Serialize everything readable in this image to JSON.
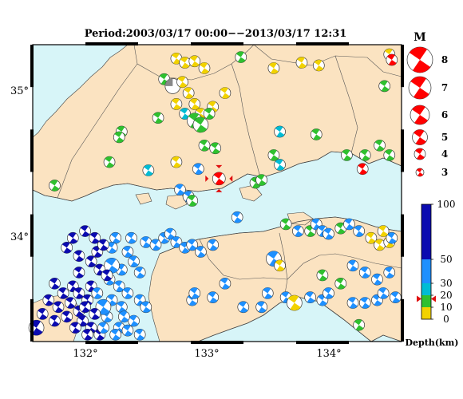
{
  "title": "Period:2003/03/17 00:00−−2013/03/17 12:31",
  "colors": {
    "land": "#fbe3c1",
    "sea": "#d7f5f8",
    "border": "#555555",
    "coast": "#444444",
    "deep": "#0b0bb0",
    "mid": "#1e90ff",
    "cyan": "#00bcd4",
    "green": "#2fc02f",
    "yellow": "#f2d200",
    "red": "#ff0000",
    "mainshock": "#e01010"
  },
  "axes": {
    "lon_ticks": [
      "132°",
      "133°",
      "134°"
    ],
    "lat_ticks": [
      "35°",
      "34°"
    ]
  },
  "magnitude_legend": {
    "title": "M",
    "items": [
      "8",
      "7",
      "6",
      "5",
      "4",
      "3"
    ]
  },
  "depth_legend": {
    "ticks": [
      "100",
      "50",
      "30",
      "20",
      "10",
      "0"
    ],
    "label": "Depth(km)",
    "current_depth_marker": 17
  },
  "mainshock": {
    "lon": 133.1,
    "lat": 34.38,
    "magnitude": 5,
    "color": "red"
  },
  "events": [
    [
      132.75,
      35.25,
      "yellow",
      4
    ],
    [
      132.82,
      35.22,
      "yellow",
      4
    ],
    [
      132.9,
      35.23,
      "yellow",
      4
    ],
    [
      132.98,
      35.18,
      "yellow",
      4
    ],
    [
      133.28,
      35.26,
      "green",
      4
    ],
    [
      133.55,
      35.18,
      "yellow",
      4
    ],
    [
      133.78,
      35.22,
      "yellow",
      4
    ],
    [
      133.92,
      35.2,
      "yellow",
      4
    ],
    [
      134.5,
      35.28,
      "yellow",
      4
    ],
    [
      134.52,
      35.24,
      "red",
      4
    ],
    [
      134.46,
      35.05,
      "green",
      4
    ],
    [
      132.65,
      35.1,
      "green",
      4
    ],
    [
      132.72,
      35.05,
      "white",
      5
    ],
    [
      132.8,
      35.08,
      "yellow",
      4
    ],
    [
      132.85,
      35.0,
      "yellow",
      4
    ],
    [
      132.75,
      34.92,
      "yellow",
      4
    ],
    [
      132.82,
      34.85,
      "cyan",
      4
    ],
    [
      132.9,
      34.92,
      "yellow",
      4
    ],
    [
      132.95,
      34.85,
      "yellow",
      4
    ],
    [
      133.05,
      34.9,
      "yellow",
      4
    ],
    [
      133.15,
      35.0,
      "yellow",
      4
    ],
    [
      132.9,
      34.8,
      "green",
      5
    ],
    [
      132.95,
      34.77,
      "green",
      5
    ],
    [
      133.02,
      34.85,
      "green",
      4
    ],
    [
      132.6,
      34.82,
      "green",
      4
    ],
    [
      132.3,
      34.72,
      "green",
      4
    ],
    [
      132.28,
      34.68,
      "green",
      4
    ],
    [
      132.98,
      34.62,
      "green",
      4
    ],
    [
      133.07,
      34.6,
      "green",
      4
    ],
    [
      132.75,
      34.5,
      "yellow",
      4
    ],
    [
      133.6,
      34.72,
      "cyan",
      4
    ],
    [
      133.9,
      34.7,
      "green",
      4
    ],
    [
      134.15,
      34.55,
      "green",
      4
    ],
    [
      133.55,
      34.55,
      "green",
      4
    ],
    [
      134.3,
      34.55,
      "green",
      4
    ],
    [
      134.42,
      34.62,
      "green",
      4
    ],
    [
      134.5,
      34.55,
      "green",
      4
    ],
    [
      134.28,
      34.45,
      "red",
      4
    ],
    [
      132.2,
      34.5,
      "green",
      4
    ],
    [
      132.52,
      34.44,
      "cyan",
      4
    ],
    [
      132.93,
      34.45,
      "mid",
      4
    ],
    [
      131.75,
      34.33,
      "green",
      4
    ],
    [
      132.78,
      34.3,
      "mid",
      4
    ],
    [
      132.85,
      34.25,
      "mid",
      4
    ],
    [
      132.88,
      34.22,
      "green",
      4
    ],
    [
      133.4,
      34.35,
      "green",
      4
    ],
    [
      133.45,
      34.37,
      "green",
      4
    ],
    [
      133.6,
      34.48,
      "cyan",
      4
    ],
    [
      133.25,
      34.1,
      "mid",
      4
    ],
    [
      133.65,
      34.05,
      "green",
      4
    ],
    [
      133.75,
      34.0,
      "mid",
      4
    ],
    [
      133.85,
      34.0,
      "green",
      4
    ],
    [
      133.9,
      34.05,
      "mid",
      4
    ],
    [
      133.95,
      34.0,
      "mid",
      4
    ],
    [
      134.0,
      33.98,
      "mid",
      4
    ],
    [
      134.1,
      34.02,
      "green",
      4
    ],
    [
      134.17,
      34.05,
      "mid",
      4
    ],
    [
      134.25,
      34.0,
      "mid",
      4
    ],
    [
      134.35,
      33.95,
      "yellow",
      4
    ],
    [
      134.42,
      33.9,
      "yellow",
      4
    ],
    [
      134.5,
      33.92,
      "yellow",
      4
    ],
    [
      134.52,
      33.95,
      "mid",
      4
    ],
    [
      134.45,
      34.0,
      "yellow",
      4
    ],
    [
      132.38,
      33.95,
      "mid",
      4
    ],
    [
      132.5,
      33.92,
      "mid",
      4
    ],
    [
      132.58,
      33.9,
      "mid",
      4
    ],
    [
      132.65,
      33.95,
      "mid",
      4
    ],
    [
      132.7,
      33.98,
      "mid",
      4
    ],
    [
      132.75,
      33.92,
      "mid",
      4
    ],
    [
      132.82,
      33.88,
      "mid",
      4
    ],
    [
      132.88,
      33.9,
      "mid",
      4
    ],
    [
      132.95,
      33.85,
      "mid",
      4
    ],
    [
      133.05,
      33.9,
      "mid",
      4
    ],
    [
      133.55,
      33.8,
      "mid",
      5
    ],
    [
      133.6,
      33.75,
      "yellow",
      4
    ],
    [
      134.2,
      33.75,
      "mid",
      4
    ],
    [
      134.3,
      33.7,
      "mid",
      4
    ],
    [
      134.4,
      33.65,
      "mid",
      4
    ],
    [
      134.5,
      33.7,
      "mid",
      4
    ],
    [
      133.95,
      33.68,
      "green",
      4
    ],
    [
      134.1,
      33.62,
      "green",
      4
    ],
    [
      133.15,
      33.62,
      "mid",
      4
    ],
    [
      133.5,
      33.55,
      "mid",
      4
    ],
    [
      133.65,
      33.52,
      "mid",
      4
    ],
    [
      133.05,
      33.52,
      "mid",
      4
    ],
    [
      132.88,
      33.5,
      "mid",
      4
    ],
    [
      132.9,
      33.55,
      "mid",
      4
    ],
    [
      133.3,
      33.45,
      "mid",
      4
    ],
    [
      133.45,
      33.45,
      "mid",
      4
    ],
    [
      133.72,
      33.48,
      "yellow",
      5
    ],
    [
      133.85,
      33.52,
      "mid",
      4
    ],
    [
      133.95,
      33.5,
      "mid",
      4
    ],
    [
      134.0,
      33.55,
      "mid",
      4
    ],
    [
      134.2,
      33.48,
      "mid",
      4
    ],
    [
      134.3,
      33.48,
      "mid",
      4
    ],
    [
      134.4,
      33.5,
      "mid",
      4
    ],
    [
      134.45,
      33.55,
      "mid",
      4
    ],
    [
      134.55,
      33.52,
      "mid",
      4
    ],
    [
      134.25,
      33.32,
      "green",
      4
    ],
    [
      132.25,
      33.95,
      "mid",
      4
    ],
    [
      132.22,
      33.88,
      "mid",
      4
    ],
    [
      132.35,
      33.85,
      "mid",
      4
    ],
    [
      132.4,
      33.78,
      "mid",
      4
    ],
    [
      132.3,
      33.72,
      "mid",
      4
    ],
    [
      132.2,
      33.65,
      "mid",
      4
    ],
    [
      132.28,
      33.6,
      "mid",
      4
    ],
    [
      132.35,
      33.55,
      "mid",
      4
    ],
    [
      132.22,
      33.5,
      "mid",
      4
    ],
    [
      132.3,
      33.45,
      "mid",
      4
    ],
    [
      132.18,
      33.38,
      "mid",
      4
    ],
    [
      132.28,
      33.3,
      "mid",
      4
    ],
    [
      132.4,
      33.35,
      "mid",
      4
    ],
    [
      132.15,
      33.45,
      "mid",
      5
    ],
    [
      132.22,
      33.75,
      "mid",
      5
    ],
    [
      132.45,
      33.7,
      "mid",
      4
    ],
    [
      131.9,
      33.95,
      "deep",
      4
    ],
    [
      132.0,
      34.0,
      "deep",
      4
    ],
    [
      132.08,
      33.95,
      "deep",
      4
    ],
    [
      131.85,
      33.88,
      "deep",
      4
    ],
    [
      131.95,
      33.82,
      "deep",
      4
    ],
    [
      132.05,
      33.78,
      "deep",
      4
    ],
    [
      132.1,
      33.85,
      "deep",
      4
    ],
    [
      132.15,
      33.9,
      "deep",
      4
    ],
    [
      132.12,
      33.72,
      "deep",
      4
    ],
    [
      132.18,
      33.68,
      "deep",
      4
    ],
    [
      131.95,
      33.7,
      "deep",
      4
    ],
    [
      131.9,
      33.6,
      "deep",
      4
    ],
    [
      131.82,
      33.55,
      "deep",
      4
    ],
    [
      131.75,
      33.62,
      "deep",
      4
    ],
    [
      131.7,
      33.5,
      "deep",
      4
    ],
    [
      131.78,
      33.45,
      "deep",
      4
    ],
    [
      131.88,
      33.48,
      "deep",
      4
    ],
    [
      131.95,
      33.42,
      "deep",
      4
    ],
    [
      131.85,
      33.38,
      "deep",
      4
    ],
    [
      131.75,
      33.35,
      "deep",
      4
    ],
    [
      131.65,
      33.4,
      "deep",
      4
    ],
    [
      131.95,
      33.55,
      "deep",
      4
    ],
    [
      132.05,
      33.6,
      "deep",
      4
    ],
    [
      132.02,
      33.5,
      "deep",
      4
    ],
    [
      132.0,
      33.45,
      "deep",
      4
    ],
    [
      131.98,
      33.35,
      "deep",
      4
    ],
    [
      131.92,
      33.3,
      "deep",
      4
    ],
    [
      132.05,
      33.3,
      "deep",
      4
    ],
    [
      132.12,
      33.25,
      "deep",
      4
    ],
    [
      132.08,
      33.4,
      "deep",
      4
    ],
    [
      131.6,
      33.3,
      "deep",
      5
    ],
    [
      132.02,
      33.25,
      "deep",
      4
    ],
    [
      132.15,
      33.3,
      "mid",
      4
    ],
    [
      132.25,
      33.25,
      "mid",
      4
    ],
    [
      132.35,
      33.28,
      "mid",
      4
    ],
    [
      132.45,
      33.25,
      "mid",
      4
    ],
    [
      132.32,
      33.38,
      "mid",
      4
    ],
    [
      132.1,
      33.55,
      "mid",
      4
    ],
    [
      132.45,
      33.5,
      "mid",
      4
    ],
    [
      132.5,
      33.45,
      "mid",
      4
    ]
  ]
}
